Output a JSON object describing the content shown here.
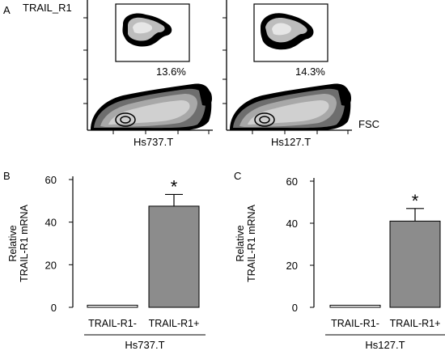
{
  "panel_a": {
    "letter": "A",
    "marker_label": "TRAIL_R1",
    "axis_label": "FSC",
    "plots": [
      {
        "sample": "Hs737.T",
        "gate_percent": "13.6%"
      },
      {
        "sample": "Hs127.T",
        "gate_percent": "14.3%"
      }
    ]
  },
  "chart_data": [
    {
      "panel": "B",
      "type": "bar",
      "categories": [
        "TRAIL-R1-",
        "TRAIL-R1+"
      ],
      "values": [
        1,
        47.5
      ],
      "error": [
        0,
        5.5
      ],
      "significance": [
        "",
        "*"
      ],
      "group_label": "Hs737.T",
      "ylabel": "Relative\nTRAIL-R1 mRNA",
      "ylabel_lines": [
        "Relative",
        "TRAIL-R1 mRNA"
      ],
      "ylim": [
        0,
        60
      ],
      "yticks": [
        0,
        20,
        40,
        60
      ],
      "bar_colors": [
        "#ffffff",
        "#8c8c8c"
      ]
    },
    {
      "panel": "C",
      "type": "bar",
      "categories": [
        "TRAIL-R1-",
        "TRAIL-R1+"
      ],
      "values": [
        1,
        41
      ],
      "error": [
        0,
        6
      ],
      "significance": [
        "",
        "*"
      ],
      "group_label": "Hs127.T",
      "ylabel": "Relative\nTRAIL-R1 mRNA",
      "ylabel_lines": [
        "Relative",
        "TRAIL-R1 mRNA"
      ],
      "ylim": [
        0,
        60
      ],
      "yticks": [
        0,
        20,
        40,
        60
      ],
      "bar_colors": [
        "#ffffff",
        "#8c8c8c"
      ]
    }
  ]
}
